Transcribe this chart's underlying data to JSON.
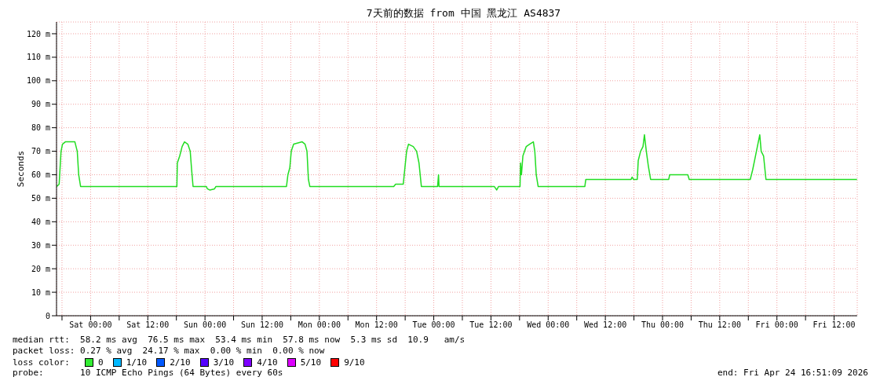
{
  "chart_data": {
    "type": "line",
    "title": "7天前的数据 from 中国 黑龙江 AS4837",
    "ylabel": "Seconds",
    "x": [
      "2026-04-17T16:54",
      "2026-04-17T17:24",
      "2026-04-17T17:48",
      "2026-04-17T18:06",
      "2026-04-17T18:42",
      "2026-04-17T20:42",
      "2026-04-17T21:12",
      "2026-04-17T21:30",
      "2026-04-17T21:54",
      "2026-04-18T18:06",
      "2026-04-18T18:12",
      "2026-04-18T18:42",
      "2026-04-18T19:12",
      "2026-04-18T19:42",
      "2026-04-18T20:24",
      "2026-04-18T20:54",
      "2026-04-18T21:12",
      "2026-04-18T21:30",
      "2026-04-19T00:18",
      "2026-04-19T00:30",
      "2026-04-19T01:00",
      "2026-04-19T02:00",
      "2026-04-19T02:18",
      "2026-04-19T17:06",
      "2026-04-19T17:24",
      "2026-04-19T17:48",
      "2026-04-19T18:06",
      "2026-04-19T18:36",
      "2026-04-19T20:24",
      "2026-04-19T21:00",
      "2026-04-19T21:24",
      "2026-04-19T21:42",
      "2026-04-19T22:00",
      "2026-04-20T15:36",
      "2026-04-20T16:00",
      "2026-04-20T17:36",
      "2026-04-20T17:54",
      "2026-04-20T18:18",
      "2026-04-20T18:42",
      "2026-04-20T19:42",
      "2026-04-20T20:24",
      "2026-04-20T20:54",
      "2026-04-20T21:24",
      "2026-04-21T00:48",
      "2026-04-21T01:00",
      "2026-04-21T01:06",
      "2026-04-21T12:42",
      "2026-04-21T13:12",
      "2026-04-21T13:36",
      "2026-04-21T18:06",
      "2026-04-21T18:12",
      "2026-04-21T18:24",
      "2026-04-21T18:42",
      "2026-04-21T19:24",
      "2026-04-21T20:06",
      "2026-04-21T20:54",
      "2026-04-21T21:12",
      "2026-04-21T21:30",
      "2026-04-21T21:54",
      "2026-04-22T07:42",
      "2026-04-22T07:54",
      "2026-04-22T17:24",
      "2026-04-22T17:36",
      "2026-04-22T17:54",
      "2026-04-22T18:42",
      "2026-04-22T18:54",
      "2026-04-22T19:24",
      "2026-04-22T19:54",
      "2026-04-22T20:12",
      "2026-04-22T20:36",
      "2026-04-22T21:00",
      "2026-04-22T21:30",
      "2026-04-23T01:18",
      "2026-04-23T01:30",
      "2026-04-23T05:18",
      "2026-04-23T05:36",
      "2026-04-23T18:24",
      "2026-04-23T18:54",
      "2026-04-23T19:24",
      "2026-04-23T19:54",
      "2026-04-23T20:24",
      "2026-04-23T20:42",
      "2026-04-23T21:12",
      "2026-04-23T21:42",
      "2026-04-24T16:48"
    ],
    "series": [
      {
        "color": "#22dd22",
        "values": [
          55,
          56,
          70,
          73,
          74,
          74,
          70,
          60,
          55,
          55,
          65,
          68,
          72,
          74,
          73,
          70,
          62,
          55,
          55,
          54,
          53.5,
          54,
          55,
          55,
          60,
          63,
          70,
          73,
          74,
          73,
          70,
          58,
          55,
          55,
          56,
          56,
          62,
          70,
          73,
          72,
          70,
          65,
          55,
          55,
          60,
          55,
          55,
          53.5,
          55,
          55,
          65,
          60,
          68,
          72,
          73,
          74,
          70,
          60,
          55,
          55,
          58,
          58,
          59,
          58,
          58,
          66,
          70,
          72,
          77,
          70,
          64,
          58,
          58,
          60,
          60,
          58,
          58,
          62,
          67,
          72,
          77,
          70,
          68,
          58,
          58
        ]
      }
    ],
    "xlim": [
      "2026-04-17T16:51",
      "2026-04-24T16:51"
    ],
    "xticks": [
      {
        "value": "2026-04-17T18:00",
        "label": null
      },
      {
        "value": "2026-04-18T00:00",
        "label": "Sat 00:00"
      },
      {
        "value": "2026-04-18T06:00",
        "label": null
      },
      {
        "value": "2026-04-18T12:00",
        "label": "Sat 12:00"
      },
      {
        "value": "2026-04-18T18:00",
        "label": null
      },
      {
        "value": "2026-04-19T00:00",
        "label": "Sun 00:00"
      },
      {
        "value": "2026-04-19T06:00",
        "label": null
      },
      {
        "value": "2026-04-19T12:00",
        "label": "Sun 12:00"
      },
      {
        "value": "2026-04-19T18:00",
        "label": null
      },
      {
        "value": "2026-04-20T00:00",
        "label": "Mon 00:00"
      },
      {
        "value": "2026-04-20T06:00",
        "label": null
      },
      {
        "value": "2026-04-20T12:00",
        "label": "Mon 12:00"
      },
      {
        "value": "2026-04-20T18:00",
        "label": null
      },
      {
        "value": "2026-04-21T00:00",
        "label": "Tue 00:00"
      },
      {
        "value": "2026-04-21T06:00",
        "label": null
      },
      {
        "value": "2026-04-21T12:00",
        "label": "Tue 12:00"
      },
      {
        "value": "2026-04-21T18:00",
        "label": null
      },
      {
        "value": "2026-04-22T00:00",
        "label": "Wed 00:00"
      },
      {
        "value": "2026-04-22T06:00",
        "label": null
      },
      {
        "value": "2026-04-22T12:00",
        "label": "Wed 12:00"
      },
      {
        "value": "2026-04-22T18:00",
        "label": null
      },
      {
        "value": "2026-04-23T00:00",
        "label": "Thu 00:00"
      },
      {
        "value": "2026-04-23T06:00",
        "label": null
      },
      {
        "value": "2026-04-23T12:00",
        "label": "Thu 12:00"
      },
      {
        "value": "2026-04-23T18:00",
        "label": null
      },
      {
        "value": "2026-04-24T00:00",
        "label": "Fri 00:00"
      },
      {
        "value": "2026-04-24T06:00",
        "label": null
      },
      {
        "value": "2026-04-24T12:00",
        "label": "Fri 12:00"
      }
    ],
    "ylim": [
      0,
      125
    ],
    "yticks": [
      0,
      {
        "value": 10,
        "label": "10 m"
      },
      {
        "value": 20,
        "label": "20 m"
      },
      {
        "value": 30,
        "label": "30 m"
      },
      {
        "value": 40,
        "label": "40 m"
      },
      {
        "value": 50,
        "label": "50 m"
      },
      {
        "value": 60,
        "label": "60 m"
      },
      {
        "value": 70,
        "label": "70 m"
      },
      {
        "value": 80,
        "label": "80 m"
      },
      {
        "value": 90,
        "label": "90 m"
      },
      {
        "value": 100,
        "label": "100 m"
      },
      {
        "value": 110,
        "label": "110 m"
      },
      {
        "value": 120,
        "label": "120 m"
      }
    ],
    "grid": true,
    "annotations": [
      "median rtt:  58.2 ms avg  76.5 ms max  53.4 ms min  57.8 ms now  5.3 ms sd  10.9   am/s",
      "packet loss: 0.27 % avg  24.17 % max  0.00 % min  0.00 % now",
      "loss color:",
      "0",
      "1/10",
      "2/10",
      "3/10",
      "4/10",
      "5/10",
      "9/10",
      "probe:       10 ICMP Echo Pings (64 Bytes) every 60s",
      "end: Fri Apr 24 16:51:09 2026"
    ]
  }
}
